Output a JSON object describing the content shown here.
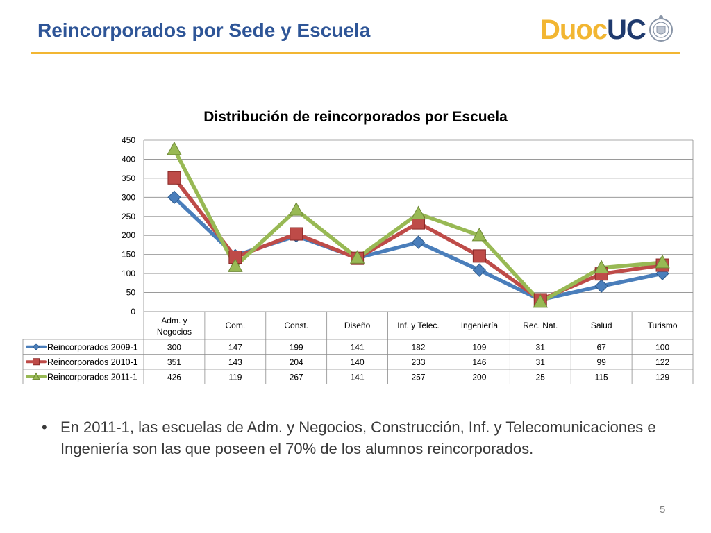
{
  "slide": {
    "title": "Reincorporados por Sede y Escuela",
    "page_number": "5",
    "logo": {
      "part1": "Duoc",
      "part2": "UC"
    },
    "bullet": "En 2011-1, las escuelas de Adm. y Negocios, Construcción, Inf. y Telecomunicaciones e Ingeniería son las que poseen el 70% de los alumnos reincorporados."
  },
  "colors": {
    "title": "#2e5597",
    "rule": "#f2b632",
    "series": [
      "#4a7ebb",
      "#be4b48",
      "#98b954"
    ]
  },
  "chart_data": {
    "type": "line",
    "title": "Distribución de reincorporados por Escuela",
    "categories": [
      "Adm. y Negocios",
      "Com.",
      "Const.",
      "Diseño",
      "Inf. y Telec.",
      "Ingeniería",
      "Rec. Nat.",
      "Salud",
      "Turismo"
    ],
    "yticks": [
      "0",
      "50",
      "100",
      "150",
      "200",
      "250",
      "300",
      "350",
      "400",
      "450"
    ],
    "ylim": [
      0,
      450
    ],
    "grid": true,
    "legend": "data-table-left",
    "series": [
      {
        "name": "Reincorporados 2009-1",
        "marker": "diamond",
        "values": [
          300,
          147,
          199,
          141,
          182,
          109,
          31,
          67,
          100
        ]
      },
      {
        "name": "Reincorporados 2010-1",
        "marker": "square",
        "values": [
          351,
          143,
          204,
          140,
          233,
          146,
          31,
          99,
          122
        ]
      },
      {
        "name": "Reincorporados 2011-1",
        "marker": "triangle",
        "values": [
          426,
          119,
          267,
          141,
          257,
          200,
          25,
          115,
          129
        ]
      }
    ]
  }
}
